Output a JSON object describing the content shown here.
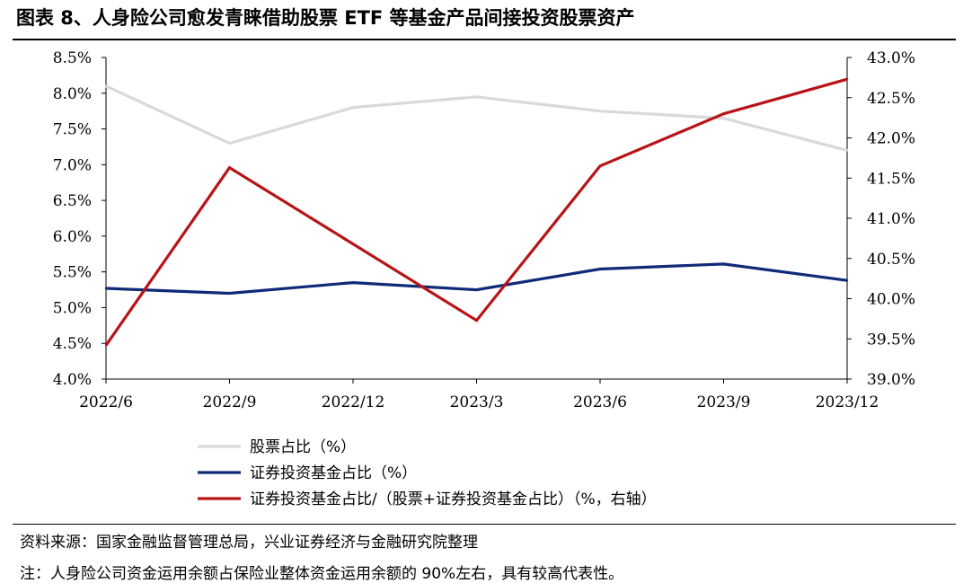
{
  "title": "图表 8、人身险公司愈发青睐借助股票 ETF 等基金产品间接投资股票资产",
  "source": "资料来源：国家金融监督管理总局，兴业证券经济与金融研究院整理",
  "note": "注：人身险公司资金运用余额占保险业整体资金运用余额的 90%左右，具有较高代表性。",
  "chart_data": {
    "type": "line",
    "categories": [
      "2022/6",
      "2022/9",
      "2022/12",
      "2023/3",
      "2023/6",
      "2023/9",
      "2023/12"
    ],
    "y_left": {
      "ylim": [
        4.0,
        8.5
      ],
      "ticks": [
        "4.0%",
        "4.5%",
        "5.0%",
        "5.5%",
        "6.0%",
        "6.5%",
        "7.0%",
        "7.5%",
        "8.0%",
        "8.5%"
      ]
    },
    "y_right": {
      "ylim": [
        39.0,
        43.0
      ],
      "ticks": [
        "39.0%",
        "39.5%",
        "40.0%",
        "40.5%",
        "41.0%",
        "41.5%",
        "42.0%",
        "42.5%",
        "43.0%"
      ]
    },
    "grid": false,
    "legend_position": "bottom-center",
    "series": [
      {
        "name": "股票占比（%）",
        "axis": "left",
        "color": "#d9d9d9",
        "values": [
          8.1,
          7.3,
          7.8,
          7.95,
          7.75,
          7.65,
          7.2
        ]
      },
      {
        "name": "证券投资基金占比（%）",
        "axis": "left",
        "color": "#0f2a78",
        "values": [
          5.27,
          5.2,
          5.35,
          5.25,
          5.54,
          5.61,
          5.38
        ]
      },
      {
        "name": "证券投资基金占比/（股票+证券投资基金占比）（%，右轴）",
        "axis": "right",
        "color": "#b81418",
        "values": [
          39.42,
          41.63,
          40.68,
          39.73,
          41.65,
          42.3,
          42.73
        ]
      }
    ]
  }
}
